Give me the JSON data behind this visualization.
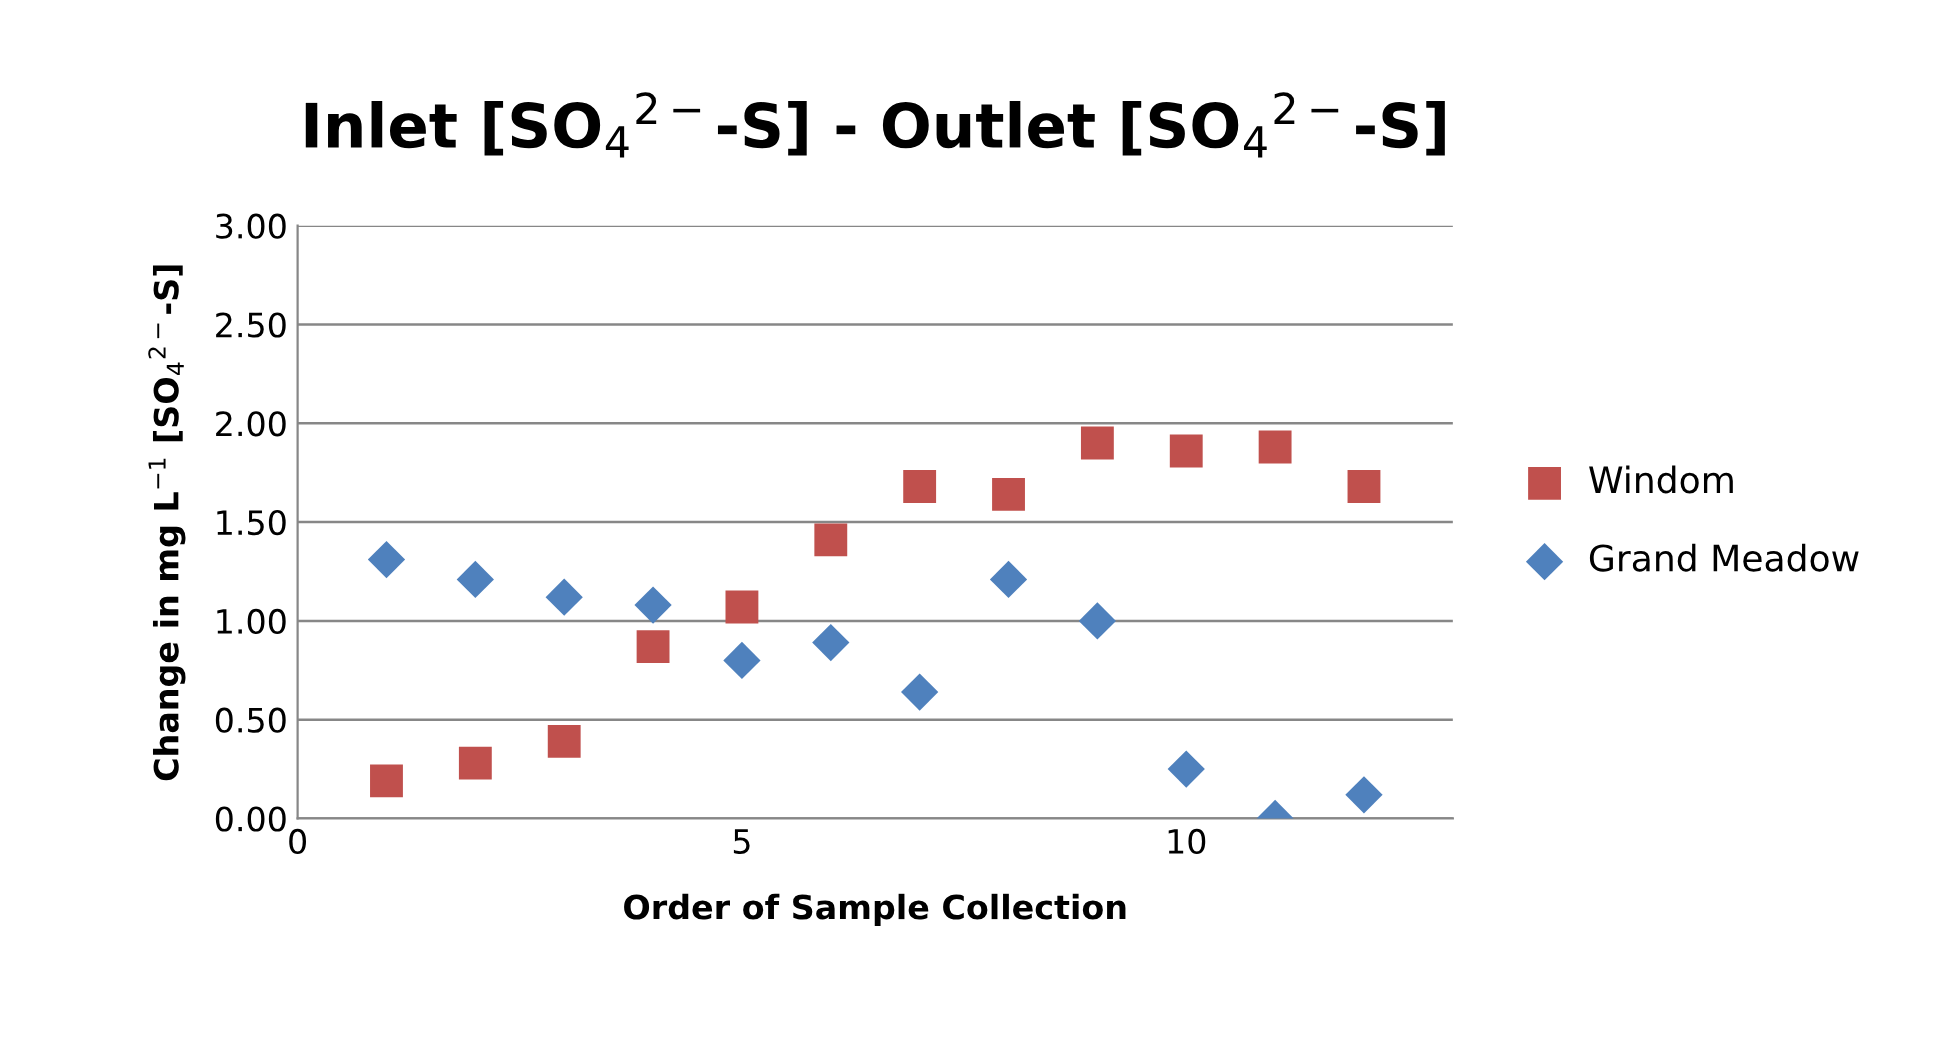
{
  "chart_data": {
    "type": "scatter",
    "title": "Inlet [SO$_{4}$$^{2−}$-S] - Outlet [SO$_{4}$$^{2−}$-S]",
    "xlabel": "Order of Sample Collection",
    "ylabel": "Change in mg L$^{−1}$ [SO$_{4}$$^{2−}$-S]",
    "series": [
      {
        "name": "Windom",
        "color": "#c0504d",
        "marker": "square",
        "x": [
          1,
          2,
          3,
          4,
          5,
          6,
          7,
          8,
          9,
          10,
          11,
          12
        ],
        "values": [
          0.19,
          0.28,
          0.39,
          0.87,
          1.07,
          1.41,
          1.68,
          1.64,
          1.9,
          1.86,
          1.88,
          1.68
        ]
      },
      {
        "name": "Grand Meadow",
        "color": "#4f81bd",
        "marker": "diamond",
        "x": [
          1,
          2,
          3,
          4,
          5,
          6,
          7,
          8,
          9,
          10,
          11,
          12
        ],
        "values": [
          1.31,
          1.21,
          1.12,
          1.08,
          0.8,
          0.89,
          0.64,
          1.21,
          1.0,
          0.25,
          0.0,
          0.12
        ]
      }
    ],
    "xlim": [
      0,
      13
    ],
    "xticks": [
      0,
      5,
      10
    ],
    "ylim": [
      0,
      3
    ],
    "yticks": [
      {
        "value": 0,
        "label": "0.00"
      },
      {
        "value": 0.5,
        "label": "0.50"
      },
      {
        "value": 1,
        "label": "1.00"
      },
      {
        "value": 1.5,
        "label": "1.50"
      },
      {
        "value": 2,
        "label": "2.00"
      },
      {
        "value": 2.5,
        "label": "2.50"
      },
      {
        "value": 3,
        "label": "3.00"
      }
    ],
    "grid": "y",
    "legend": "right"
  }
}
